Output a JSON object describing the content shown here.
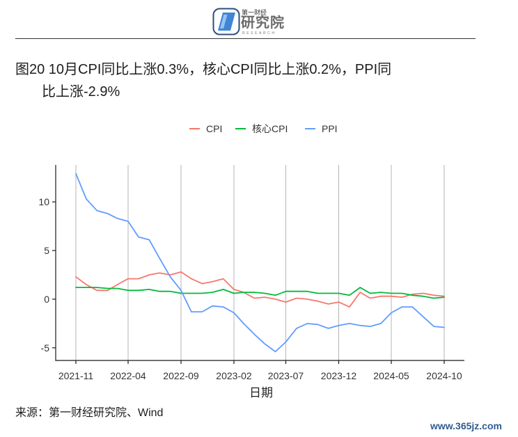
{
  "logo": {
    "text_small": "第一财经",
    "text_main": "研究院",
    "text_sub": "RESEARCH",
    "icon": "logo-parallelogram-icon"
  },
  "chart_data": {
    "type": "line",
    "title_lines": [
      "图20 10月CPI同比上涨0.3%，核心CPI同比上涨0.2%，PPI同",
      "比上涨-2.9%"
    ],
    "xlabel": "日期",
    "x": [
      "2021-11",
      "2021-12",
      "2022-01",
      "2022-02",
      "2022-03",
      "2022-04",
      "2022-05",
      "2022-06",
      "2022-07",
      "2022-08",
      "2022-09",
      "2022-10",
      "2022-11",
      "2022-12",
      "2023-01",
      "2023-02",
      "2023-03",
      "2023-04",
      "2023-05",
      "2023-06",
      "2023-07",
      "2023-08",
      "2023-09",
      "2023-10",
      "2023-11",
      "2023-12",
      "2024-01",
      "2024-02",
      "2024-03",
      "2024-04",
      "2024-05",
      "2024-06",
      "2024-07",
      "2024-08",
      "2024-09",
      "2024-10"
    ],
    "x_ticks": [
      "2021-11",
      "2022-04",
      "2022-09",
      "2023-02",
      "2023-07",
      "2023-12",
      "2024-05",
      "2024-10"
    ],
    "y_ticks": [
      10,
      5,
      0,
      -5
    ],
    "ylim": [
      -6.3,
      13.8
    ],
    "grid": {
      "vertical": true,
      "horizontal": false
    },
    "legend_position": "top",
    "series": [
      {
        "name": "CPI",
        "color": "#F8766D",
        "values": [
          2.3,
          1.5,
          0.9,
          0.9,
          1.5,
          2.1,
          2.1,
          2.5,
          2.7,
          2.5,
          2.8,
          2.1,
          1.6,
          1.8,
          2.1,
          1.0,
          0.7,
          0.1,
          0.2,
          0.0,
          -0.3,
          0.1,
          0.0,
          -0.2,
          -0.5,
          -0.3,
          -0.8,
          0.7,
          0.1,
          0.3,
          0.3,
          0.2,
          0.5,
          0.6,
          0.4,
          0.3
        ]
      },
      {
        "name": "核心CPI",
        "color": "#00BA38",
        "values": [
          1.2,
          1.2,
          1.2,
          1.1,
          1.1,
          0.9,
          0.9,
          1.0,
          0.8,
          0.8,
          0.6,
          0.6,
          0.6,
          0.7,
          1.0,
          0.6,
          0.7,
          0.7,
          0.6,
          0.4,
          0.8,
          0.8,
          0.8,
          0.6,
          0.6,
          0.6,
          0.4,
          1.2,
          0.6,
          0.7,
          0.6,
          0.6,
          0.4,
          0.3,
          0.1,
          0.2
        ]
      },
      {
        "name": "PPI",
        "color": "#619CFF",
        "values": [
          12.9,
          10.3,
          9.1,
          8.8,
          8.3,
          8.0,
          6.4,
          6.1,
          4.2,
          2.3,
          0.9,
          -1.3,
          -1.3,
          -0.7,
          -0.8,
          -1.4,
          -2.5,
          -3.6,
          -4.6,
          -5.4,
          -4.4,
          -3.0,
          -2.5,
          -2.6,
          -3.0,
          -2.7,
          -2.5,
          -2.7,
          -2.8,
          -2.5,
          -1.4,
          -0.8,
          -0.8,
          -1.8,
          -2.8,
          -2.9
        ]
      }
    ]
  },
  "footer": {
    "source": "来源：第一财经研究院、Wind",
    "watermark": "www.365jz.com"
  }
}
